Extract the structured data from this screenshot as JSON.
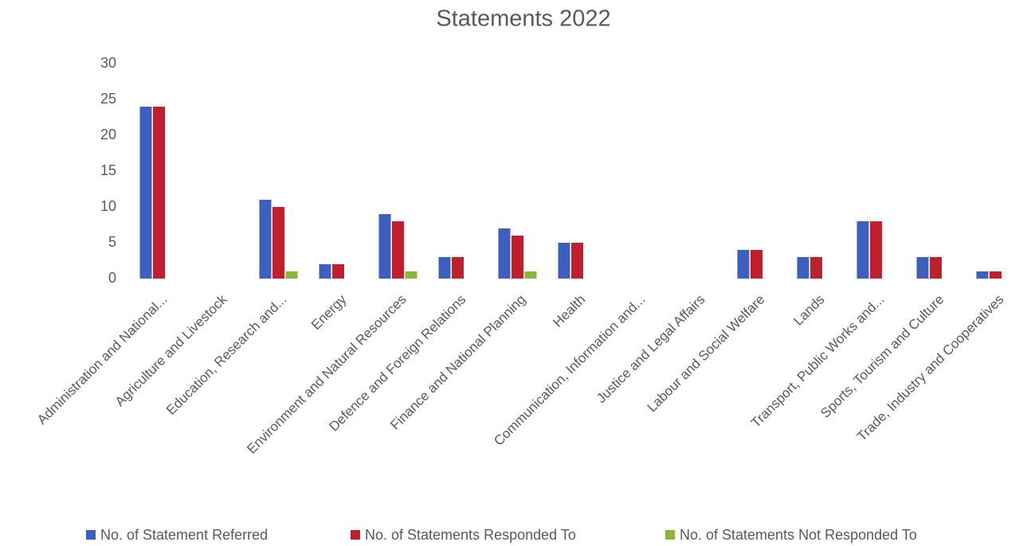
{
  "chart_data": {
    "type": "bar",
    "title": "Statements 2022",
    "categories": [
      "Administration and National...",
      "Agriculture and Livestock",
      "Education, Research and...",
      "Energy",
      "Environment and Natural Resources",
      "Defence and Foreign Relations",
      "Finance and National Planning",
      "Health",
      "Communication, Information and...",
      "Justice and Legal Affairs",
      "Labour and Social Welfare",
      "Lands",
      "Transport, Public Works and...",
      "Sports, Tourism and Culture",
      "Trade, Industry and Cooperatives"
    ],
    "series": [
      {
        "name": "No. of Statement Referred",
        "color": "#3d5fbd",
        "values": [
          24,
          0,
          11,
          2,
          9,
          3,
          7,
          5,
          0,
          0,
          4,
          3,
          8,
          3,
          1
        ]
      },
      {
        "name": "No. of Statements Responded To",
        "color": "#c0202b",
        "values": [
          24,
          0,
          10,
          2,
          8,
          3,
          6,
          5,
          0,
          0,
          4,
          3,
          8,
          3,
          1
        ]
      },
      {
        "name": "No. of Statements Not Responded To",
        "color": "#8db53c",
        "values": [
          0,
          0,
          1,
          0,
          1,
          0,
          1,
          0,
          0,
          0,
          0,
          0,
          0,
          0,
          0
        ]
      }
    ],
    "ylim": [
      0,
      30
    ],
    "yticks": [
      0,
      5,
      10,
      15,
      20,
      25,
      30
    ],
    "grid": false,
    "legend": "bottom"
  }
}
